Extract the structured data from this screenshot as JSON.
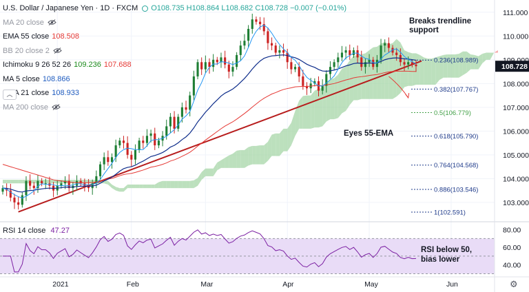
{
  "header": {
    "symbol": "U.S. Dollar / Japanese Yen · 1D · FXCM",
    "ohlc_label": "O108.735 H108.864 L108.682 C108.728 −0.007 (−0.01%)"
  },
  "indicators": [
    {
      "label": "MA 20 close",
      "value": "",
      "hidden": true,
      "color": "#9598a1"
    },
    {
      "label": "EMA 55 close",
      "value": "108.508",
      "hidden": false,
      "color": "#e53935"
    },
    {
      "label": "BB 20 close 2",
      "value": "",
      "hidden": true,
      "color": "#9598a1"
    },
    {
      "label": "Ichimoku 9 26 52 26",
      "value": "109.236",
      "value2": "107.688",
      "hidden": false,
      "color": "#1b8a1b",
      "color2": "#e53935"
    },
    {
      "label": "MA 5 close",
      "value": "108.866",
      "hidden": false,
      "color": "#1e5bbf"
    },
    {
      "label": "EMA 21 close",
      "value": "108.933",
      "hidden": false,
      "color": "#1e5bbf"
    },
    {
      "label": "MA 200 close",
      "value": "",
      "hidden": true,
      "color": "#9598a1"
    }
  ],
  "rsi": {
    "label": "RSI 14 close",
    "value": "47.27",
    "color": "#7b1fa2"
  },
  "annotations": {
    "breaks": "Breaks trendline support",
    "eyes": "Eyes 55-EMA",
    "rsi_note": "RSI below 50, bias lower"
  },
  "price_badge": "108.728",
  "colors": {
    "up": "#1e7e34",
    "down": "#cc2222",
    "trend": "#b71c1c",
    "cloud_bull": "#a5d6a7",
    "cloud_bear": "#f48a8a",
    "rsi_band": "#e9dcf7"
  },
  "chart_data": [
    {
      "type": "candlestick",
      "title": "U.S. Dollar / Japanese Yen, 1D, FXCM",
      "x_axis_labels": [
        "2021",
        "Feb",
        "Mar",
        "Apr",
        "May",
        "Jun"
      ],
      "y_ticks": [
        103.0,
        104.0,
        105.0,
        106.0,
        107.0,
        108.0,
        109.0,
        110.0,
        111.0
      ],
      "ylim": [
        102.3,
        111.4
      ],
      "last_price": 108.728,
      "fibonacci_levels": [
        {
          "ratio": "0.236",
          "value": 108.989
        },
        {
          "ratio": "0.382",
          "value": 107.767
        },
        {
          "ratio": "0.5",
          "value": 106.779
        },
        {
          "ratio": "0.618",
          "value": 105.79
        },
        {
          "ratio": "0.764",
          "value": 104.568
        },
        {
          "ratio": "0.886",
          "value": 103.546
        },
        {
          "ratio": "1",
          "value": 102.591
        }
      ],
      "close_series": [
        103.6,
        103.5,
        103.2,
        103.0,
        102.9,
        103.3,
        103.9,
        103.7,
        103.6,
        103.9,
        103.8,
        103.8,
        103.7,
        103.5,
        103.7,
        103.8,
        103.9,
        103.6,
        103.7,
        103.9,
        103.8,
        103.7,
        103.6,
        103.8,
        104.1,
        104.6,
        104.9,
        104.7,
        104.9,
        105.4,
        105.6,
        105.5,
        105.0,
        104.8,
        105.2,
        105.6,
        105.5,
        105.8,
        105.9,
        105.4,
        105.6,
        105.8,
        106.2,
        106.6,
        106.1,
        106.6,
        107.0,
        106.9,
        107.5,
        108.3,
        108.9,
        108.6,
        108.9,
        108.7,
        109.0,
        108.9,
        109.1,
        108.8,
        108.5,
        108.7,
        109.2,
        109.6,
        109.8,
        110.3,
        110.7,
        110.6,
        110.5,
        110.2,
        109.7,
        109.6,
        109.3,
        109.4,
        109.3,
        108.9,
        108.6,
        108.7,
        108.3,
        107.9,
        107.8,
        108.0,
        108.1,
        107.7,
        107.9,
        108.4,
        108.7,
        108.9,
        109.1,
        109.3,
        109.4,
        109.2,
        109.4,
        109.1,
        108.7,
        108.9,
        109.0,
        108.7,
        109.0,
        109.6,
        109.7,
        109.5,
        109.3,
        109.2,
        108.9,
        108.8,
        108.9,
        108.8,
        108.73
      ],
      "ema55_series": [
        104.6,
        104.55,
        104.5,
        104.45,
        104.4,
        104.35,
        104.3,
        104.25,
        104.2,
        104.15,
        104.1,
        104.05,
        104.0,
        103.95,
        103.92,
        103.9,
        103.88,
        103.85,
        103.84,
        103.83,
        103.83,
        103.83,
        103.83,
        103.84,
        103.86,
        103.9,
        103.95,
        103.98,
        104.01,
        104.06,
        104.12,
        104.17,
        104.2,
        104.22,
        104.26,
        104.31,
        104.36,
        104.42,
        104.48,
        104.51,
        104.55,
        104.6,
        104.66,
        104.74,
        104.79,
        104.86,
        104.94,
        105.02,
        105.11,
        105.23,
        105.37,
        105.49,
        105.62,
        105.74,
        105.86,
        105.98,
        106.1,
        106.21,
        106.3,
        106.39,
        106.5,
        106.62,
        106.74,
        106.87,
        107.01,
        107.14,
        107.27,
        107.38,
        107.47,
        107.56,
        107.62,
        107.69,
        107.75,
        107.79,
        107.82,
        107.86,
        107.87,
        107.88,
        107.88,
        107.89,
        107.91,
        107.91,
        107.91,
        107.94,
        107.97,
        108.0,
        108.05,
        108.1,
        108.15,
        108.19,
        108.24,
        108.27,
        108.29,
        108.31,
        108.34,
        108.36,
        108.38,
        108.42,
        108.46,
        108.49,
        108.51,
        108.52,
        108.52,
        108.52,
        108.52,
        108.51,
        108.51
      ]
    },
    {
      "type": "line",
      "title": "RSI 14 close",
      "y_ticks": [
        40.0,
        60.0,
        80.0
      ],
      "ylim": [
        28,
        86
      ],
      "band": [
        30,
        70
      ],
      "last_value": 47.27
    }
  ]
}
